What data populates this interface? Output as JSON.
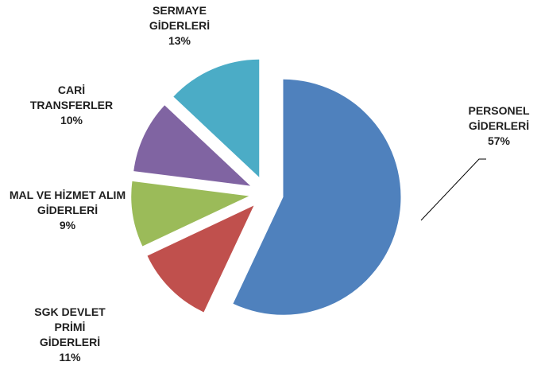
{
  "chart_data": {
    "type": "pie",
    "categories": [
      "PERSONEL GİDERLERİ",
      "SGK DEVLET PRİMİ GİDERLERİ",
      "MAL VE HİZMET ALIM GİDERLERİ",
      "CARİ TRANSFERLER",
      "SERMAYE GİDERLERİ"
    ],
    "values": [
      57,
      11,
      9,
      10,
      13
    ],
    "value_labels": [
      "57%",
      "11%",
      "9%",
      "10%",
      "13%"
    ],
    "colors": [
      "#4f81bd",
      "#c0504d",
      "#9bbb59",
      "#8064a2",
      "#4bacc6"
    ],
    "exploded": true
  }
}
